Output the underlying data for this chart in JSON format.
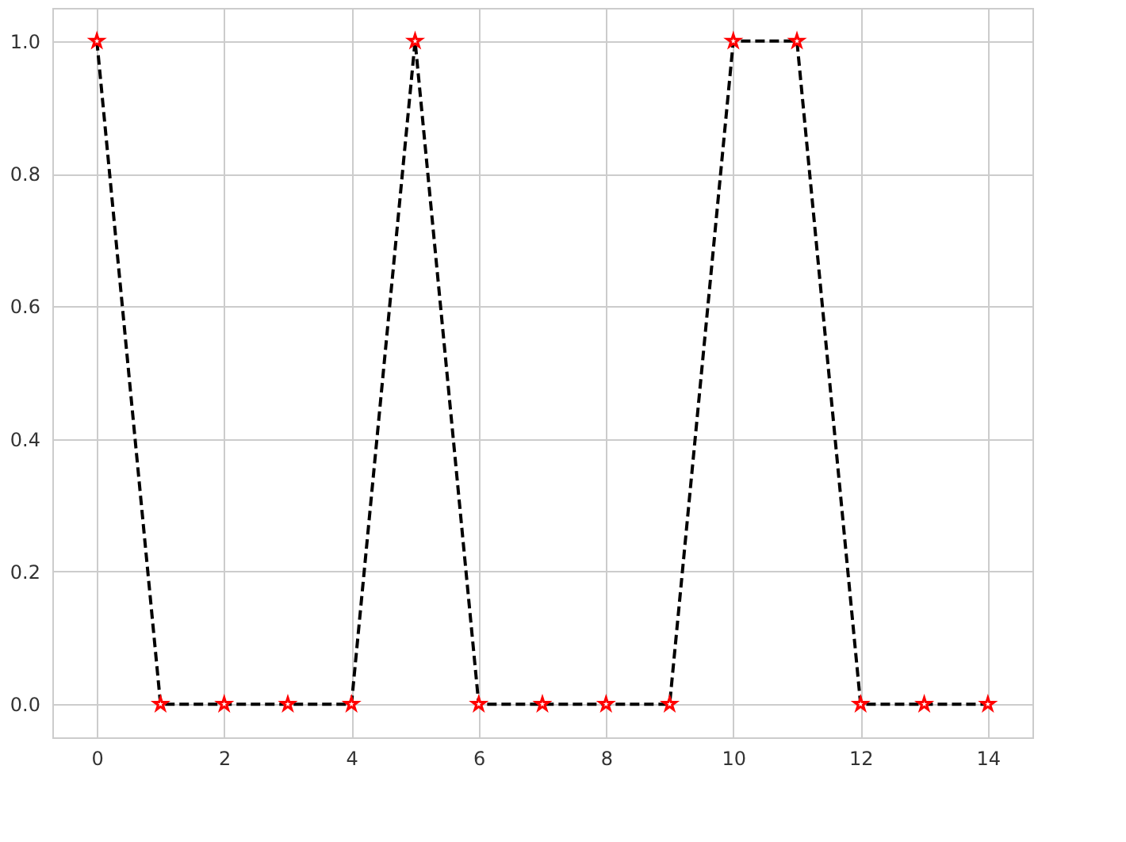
{
  "chart_data": {
    "type": "line",
    "x": [
      0,
      1,
      2,
      3,
      4,
      5,
      6,
      7,
      8,
      9,
      10,
      11,
      12,
      13,
      14
    ],
    "series": [
      {
        "color": "#000000",
        "line_style": "dashed",
        "values": [
          1,
          0,
          0,
          0,
          0,
          1,
          0,
          0,
          0,
          0,
          1,
          1,
          0,
          0,
          0
        ]
      },
      {
        "type": "scatter",
        "color": "#ff0000",
        "marker": "star",
        "values": [
          1,
          0,
          0,
          0,
          0,
          1,
          0,
          0,
          0,
          0,
          1,
          1,
          0,
          0,
          0
        ]
      }
    ],
    "xlim": [
      -0.7,
      14.7
    ],
    "ylim": [
      -0.05,
      1.05
    ],
    "xticks": [
      0,
      2,
      4,
      6,
      8,
      10,
      12,
      14
    ],
    "yticks": [
      {
        "value": 0,
        "label": "0.0"
      },
      0.2,
      0.4,
      0.6,
      0.8,
      {
        "value": 1,
        "label": "1.0"
      }
    ],
    "grid": true
  }
}
